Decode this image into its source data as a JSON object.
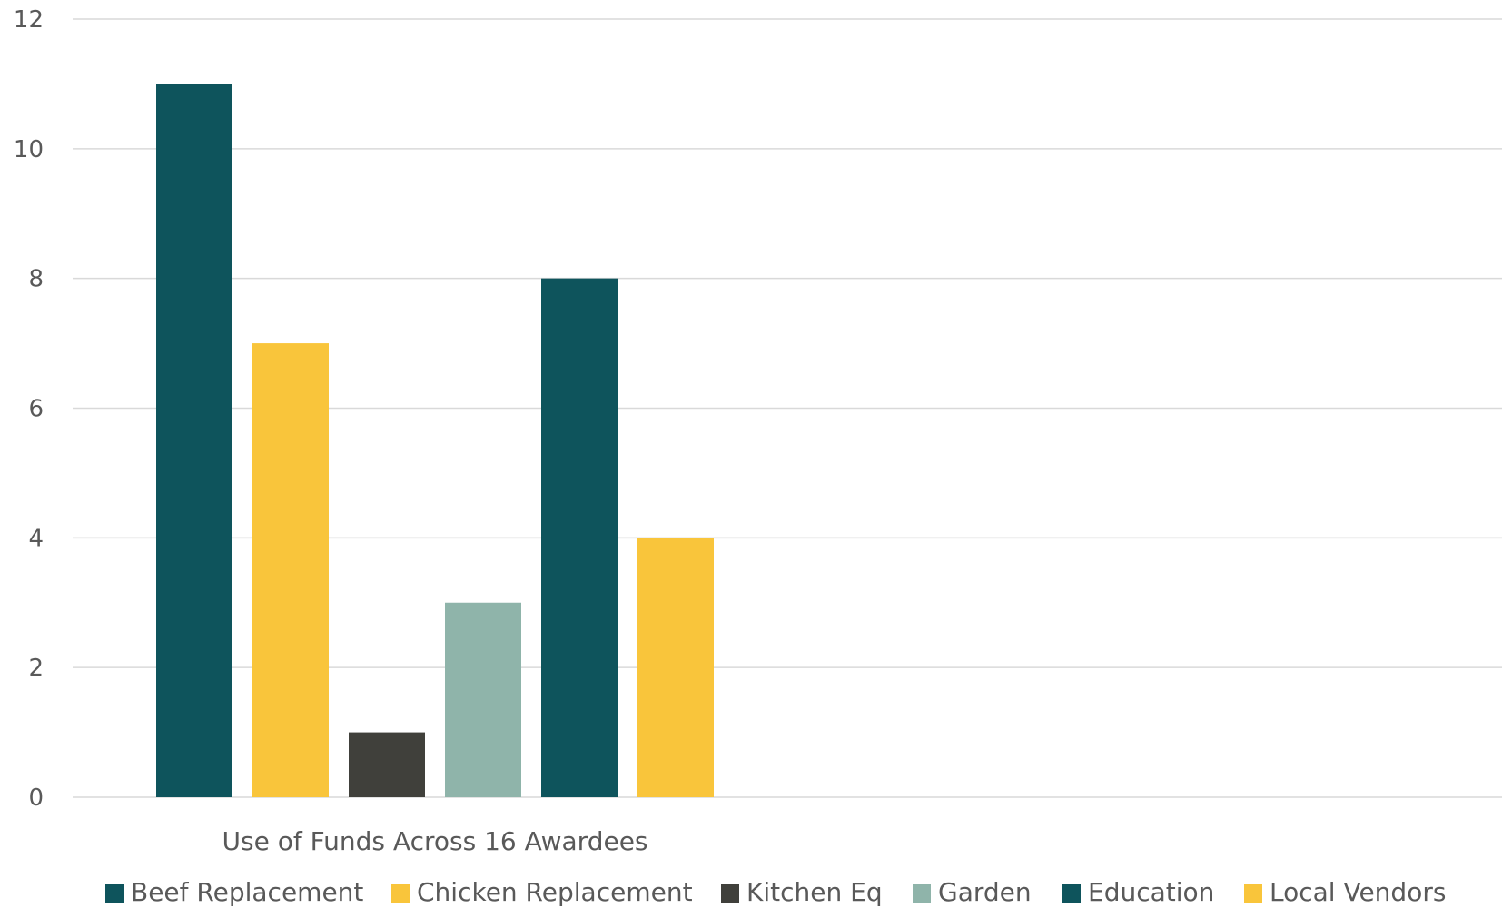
{
  "chart_data": {
    "type": "bar",
    "categories": [
      "Use of Funds Across 16 Awardees"
    ],
    "series": [
      {
        "name": "Beef Replacement",
        "values": [
          11
        ],
        "color": "#0e545c"
      },
      {
        "name": "Chicken Replacement",
        "values": [
          7
        ],
        "color": "#f9c53b"
      },
      {
        "name": "Kitchen Eq",
        "values": [
          1
        ],
        "color": "#40403b"
      },
      {
        "name": "Garden",
        "values": [
          3
        ],
        "color": "#8fb4aa"
      },
      {
        "name": "Education",
        "values": [
          8
        ],
        "color": "#0e545c"
      },
      {
        "name": "Local Vendors",
        "values": [
          4
        ],
        "color": "#f9c53b"
      }
    ],
    "ylim": [
      0,
      12
    ],
    "yticks": [
      "0",
      "2",
      "4",
      "6",
      "8",
      "10",
      "12"
    ],
    "grid": true,
    "legend_position": "bottom"
  },
  "colors": {
    "gridline": "#d9d9d9",
    "axis_text": "#595959"
  }
}
